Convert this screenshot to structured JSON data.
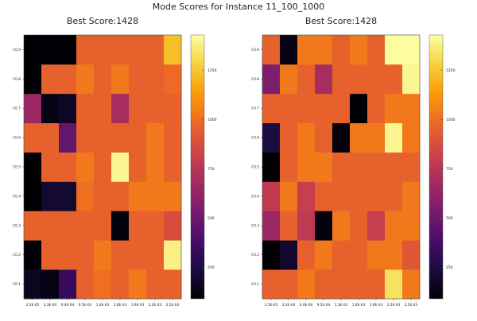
{
  "figure": {
    "title": "Mode Scores for Instance 11_100_1000"
  },
  "colors": {
    "stops": [
      "#000004",
      "#1b0c41",
      "#4a0c6b",
      "#781c6d",
      "#a52c60",
      "#cf4446",
      "#ed6925",
      "#fb9b06",
      "#f7d13d",
      "#fcffa4"
    ]
  },
  "chart_data": [
    {
      "type": "heatmap",
      "title": "Best Score:1428",
      "x_categories": [
        "2.5E-05",
        "3.3E-04",
        "6.4E-04",
        "9.5E-04",
        "1.3E-03",
        "1.6E-03",
        "1.9E-03",
        "2.2E-03",
        "2.5E-03"
      ],
      "y_categories": [
        "C0.1",
        "C0.2",
        "C0.3",
        "C0.4",
        "C0.5",
        "C0.6",
        "C0.7",
        "C0.8",
        "C0.9"
      ],
      "zlim": [
        90,
        1428
      ],
      "colorbar_ticks": [
        250,
        500,
        750,
        1000,
        1250
      ],
      "grid": false,
      "values": [
        [
          150,
          130,
          330,
          950,
          1000,
          950,
          1030,
          950,
          950
        ],
        [
          90,
          950,
          950,
          950,
          1030,
          950,
          950,
          950,
          1380
        ],
        [
          950,
          950,
          950,
          950,
          950,
          120,
          950,
          950,
          870
        ],
        [
          90,
          200,
          200,
          1000,
          950,
          950,
          1030,
          1030,
          1030
        ],
        [
          90,
          950,
          950,
          1030,
          950,
          1400,
          950,
          1030,
          950
        ],
        [
          950,
          950,
          470,
          950,
          950,
          950,
          950,
          1030,
          950
        ],
        [
          650,
          130,
          170,
          950,
          950,
          690,
          950,
          950,
          950
        ],
        [
          90,
          950,
          950,
          1030,
          950,
          1030,
          950,
          950,
          980
        ],
        [
          90,
          90,
          90,
          950,
          950,
          950,
          950,
          950,
          1230
        ]
      ]
    },
    {
      "type": "heatmap",
      "title": "Best Score:1428",
      "x_categories": [
        "2.5E-05",
        "3.3E-04",
        "6.4E-04",
        "9.5E-04",
        "1.3E-03",
        "1.6E-03",
        "1.9E-03",
        "2.2E-03",
        "2.5E-03"
      ],
      "y_categories": [
        "C0.1",
        "C0.2",
        "C0.3",
        "C0.4",
        "C0.5",
        "C0.6",
        "C0.7",
        "C0.8",
        "C0.9"
      ],
      "zlim": [
        90,
        1428
      ],
      "colorbar_ticks": [
        250,
        500,
        750,
        1000,
        1250
      ],
      "grid": false,
      "values": [
        [
          950,
          950,
          1030,
          950,
          950,
          950,
          950,
          1330,
          1030
        ],
        [
          90,
          190,
          950,
          1030,
          950,
          950,
          1030,
          1030,
          910
        ],
        [
          650,
          950,
          770,
          120,
          1030,
          950,
          800,
          1030,
          1030
        ],
        [
          780,
          1030,
          800,
          950,
          950,
          950,
          950,
          950,
          1030
        ],
        [
          90,
          950,
          1030,
          1030,
          950,
          950,
          950,
          950,
          950
        ],
        [
          240,
          950,
          1030,
          950,
          110,
          1030,
          1030,
          1400,
          1030
        ],
        [
          950,
          950,
          950,
          950,
          950,
          90,
          950,
          1030,
          1030
        ],
        [
          550,
          1030,
          950,
          690,
          950,
          950,
          950,
          950,
          1400
        ],
        [
          950,
          130,
          1030,
          1030,
          950,
          1030,
          950,
          1420,
          1420
        ]
      ]
    }
  ]
}
